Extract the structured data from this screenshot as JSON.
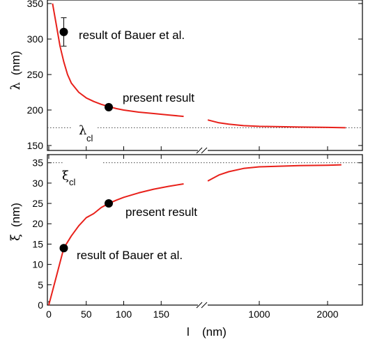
{
  "chart_data": [
    {
      "type": "line",
      "panel": "top",
      "ylabel_symbol": "λ",
      "ylabel_unit": "(nm)",
      "ylim": [
        145,
        355
      ],
      "yticks": [
        150,
        200,
        250,
        300,
        350
      ],
      "x_axis_broken": true,
      "xlim_left_segment": [
        0,
        190
      ],
      "xlim_right_segment": [
        300,
        2400
      ],
      "series": [
        {
          "color": "#e8201a",
          "x": [
            5,
            10,
            15,
            20,
            25,
            30,
            40,
            50,
            60,
            70,
            80,
            90,
            100,
            120,
            140,
            160,
            180
          ],
          "y": [
            350,
            320,
            290,
            268,
            250,
            238,
            225,
            217,
            212,
            208,
            205,
            202,
            200,
            197,
            195,
            193,
            191
          ]
        },
        {
          "color": "#e8201a",
          "x": [
            310,
            400,
            500,
            700,
            1000,
            1500,
            2000,
            2400
          ],
          "y": [
            186,
            182,
            180,
            178,
            177,
            176,
            175.5,
            175
          ]
        }
      ],
      "points": [
        {
          "label": "result of Bauer et al.",
          "x": 20,
          "y": 310,
          "err": 20
        },
        {
          "label": "present result",
          "x": 80,
          "y": 204
        }
      ],
      "reference": {
        "symbol": "λ",
        "subscript": "cl",
        "y": 175
      }
    },
    {
      "type": "line",
      "panel": "bottom",
      "ylabel_symbol": "ξ",
      "ylabel_unit": "(nm)",
      "xlabel_symbol": "l",
      "xlabel_unit": "(nm)",
      "ylim": [
        0,
        37
      ],
      "yticks": [
        0,
        5,
        10,
        15,
        20,
        25,
        30,
        35
      ],
      "xticks_left": [
        0,
        50,
        100,
        150
      ],
      "xticks_right": [
        1000,
        2000
      ],
      "series": [
        {
          "color": "#e8201a",
          "x": [
            0,
            10,
            20,
            30,
            40,
            50,
            60,
            70,
            80,
            90,
            100,
            120,
            140,
            160,
            180
          ],
          "y": [
            0,
            7,
            14,
            17,
            19.5,
            21.5,
            22.5,
            24,
            25,
            25.8,
            26.5,
            27.6,
            28.5,
            29.2,
            29.8
          ]
        },
        {
          "color": "#e8201a",
          "x": [
            310,
            400,
            500,
            700,
            1000,
            1500,
            2000,
            2300
          ],
          "y": [
            30.5,
            32.0,
            32.8,
            33.6,
            34.0,
            34.3,
            34.4,
            34.5
          ]
        }
      ],
      "points": [
        {
          "label": "result of Bauer et al.",
          "x": 20,
          "y": 14
        },
        {
          "label": "present result",
          "x": 80,
          "y": 25
        }
      ],
      "reference": {
        "symbol": "ξ",
        "subscript": "cl",
        "y": 35
      }
    }
  ]
}
